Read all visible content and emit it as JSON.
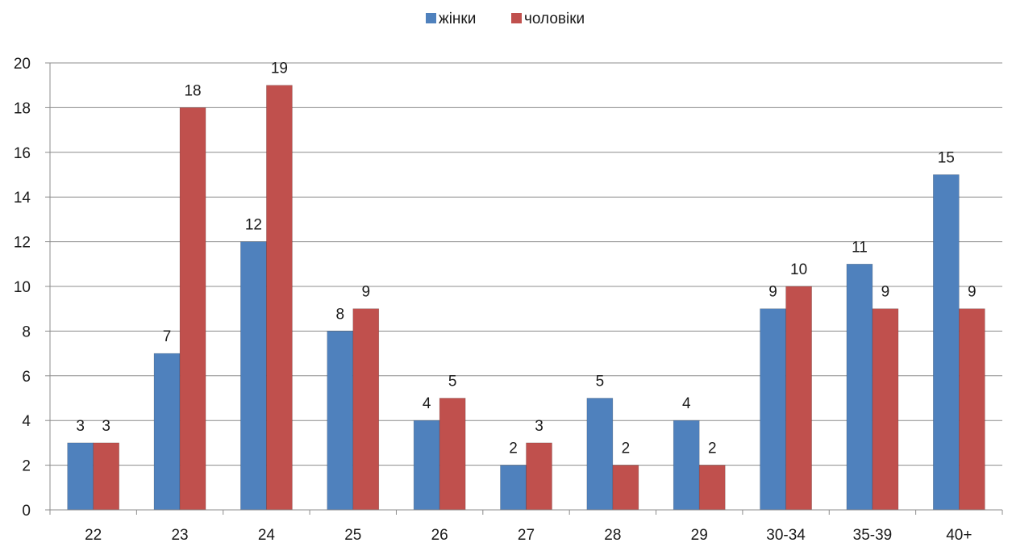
{
  "chart_data": {
    "type": "bar",
    "title": "",
    "xlabel": "",
    "ylabel": "",
    "categories": [
      "22",
      "23",
      "24",
      "25",
      "26",
      "27",
      "28",
      "29",
      "30-34",
      "35-39",
      "40+"
    ],
    "series": [
      {
        "name": "жінки",
        "color": "#4f81bd",
        "values": [
          3,
          7,
          12,
          8,
          4,
          2,
          5,
          4,
          9,
          11,
          15
        ]
      },
      {
        "name": "чоловіки",
        "color": "#c0504d",
        "values": [
          3,
          18,
          19,
          9,
          5,
          3,
          2,
          2,
          10,
          9,
          9
        ]
      }
    ],
    "ylim": [
      0,
      20
    ],
    "yticks": [
      "0",
      "2",
      "4",
      "6",
      "8",
      "10",
      "12",
      "14",
      "16",
      "18",
      "20"
    ],
    "grid": true,
    "legend_position": "top-center",
    "data_labels": true
  }
}
